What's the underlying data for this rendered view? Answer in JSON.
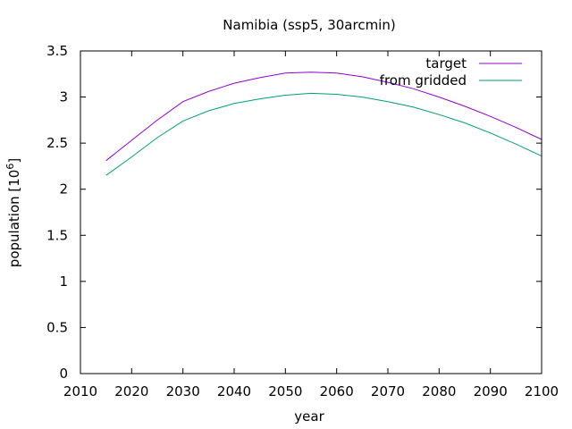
{
  "chart_data": {
    "type": "line",
    "title": "Namibia (ssp5, 30arcmin)",
    "xlabel": "year",
    "ylabel_main": "population [10",
    "ylabel_sup": "6",
    "ylabel_close": "]",
    "xlim": [
      2010,
      2100
    ],
    "ylim": [
      0,
      3.5
    ],
    "xticks": [
      "2010",
      "2020",
      "2030",
      "2040",
      "2050",
      "2060",
      "2070",
      "2080",
      "2090",
      "2100"
    ],
    "yticks": [
      "0",
      "0.5",
      "1",
      "1.5",
      "2",
      "2.5",
      "3",
      "3.5"
    ],
    "grid": false,
    "legend_position": "top-right",
    "series": [
      {
        "name": "target",
        "color": "#9400d3",
        "x": [
          2015,
          2020,
          2025,
          2030,
          2035,
          2040,
          2045,
          2050,
          2055,
          2060,
          2065,
          2070,
          2075,
          2080,
          2085,
          2090,
          2095,
          2100
        ],
        "y": [
          2.31,
          2.53,
          2.75,
          2.95,
          3.06,
          3.15,
          3.21,
          3.26,
          3.27,
          3.26,
          3.22,
          3.16,
          3.09,
          3.0,
          2.9,
          2.79,
          2.67,
          2.54
        ]
      },
      {
        "name": "from gridded",
        "color": "#009e73",
        "x": [
          2015,
          2020,
          2025,
          2030,
          2035,
          2040,
          2045,
          2050,
          2055,
          2060,
          2065,
          2070,
          2075,
          2080,
          2085,
          2090,
          2095,
          2100
        ],
        "y": [
          2.15,
          2.35,
          2.56,
          2.74,
          2.85,
          2.93,
          2.98,
          3.02,
          3.04,
          3.03,
          3.0,
          2.95,
          2.89,
          2.81,
          2.72,
          2.61,
          2.49,
          2.36
        ]
      }
    ]
  }
}
